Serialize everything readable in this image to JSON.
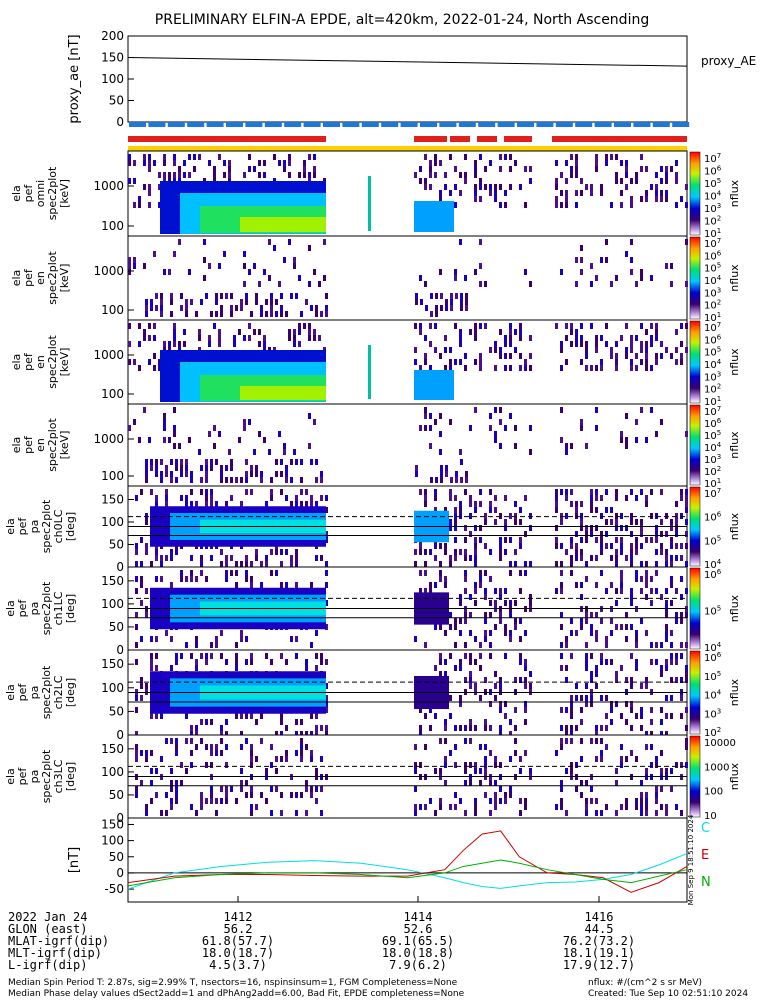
{
  "title": "PRELIMINARY ELFIN-A EPDE, alt=420km, 2022-01-24, North Ascending",
  "x_labels": [
    "1412",
    "1414",
    "1416"
  ],
  "ae_panel": {
    "ylabel": "proxy_ae [nT]",
    "ticks": [
      "200",
      "150",
      "100",
      "50",
      "0"
    ],
    "legend": "proxy_AE",
    "series": {
      "x": [
        1410.9,
        1416.9
      ],
      "y": [
        150,
        130
      ]
    }
  },
  "spectra_panels": [
    {
      "ylabel": [
        "ela",
        "pef",
        "omni",
        "spec2plot",
        "[keV]"
      ],
      "ticks": [
        "1000",
        "100"
      ],
      "cbar_ticks": [
        "10^7",
        "10^6",
        "10^5",
        "10^4",
        "10^3",
        "10^2",
        "10^1"
      ],
      "cbar_label": "nflux"
    },
    {
      "ylabel": [
        "ela",
        "pef",
        "en",
        "spec2plot",
        "[keV]"
      ],
      "ticks": [
        "1000",
        "100"
      ],
      "cbar_ticks": [
        "10^7",
        "10^6",
        "10^5",
        "10^4",
        "10^3",
        "10^2",
        "10^1"
      ],
      "cbar_label": "nflux"
    },
    {
      "ylabel": [
        "ela",
        "pef",
        "en",
        "spec2plot",
        "[keV]"
      ],
      "ticks": [
        "1000",
        "100"
      ],
      "cbar_ticks": [
        "10^7",
        "10^6",
        "10^5",
        "10^4",
        "10^3",
        "10^2",
        "10^1"
      ],
      "cbar_label": "nflux"
    },
    {
      "ylabel": [
        "ela",
        "pef",
        "en",
        "spec2plot",
        "[keV]"
      ],
      "ticks": [
        "1000",
        "100"
      ],
      "cbar_ticks": [
        "10^7",
        "10^6",
        "10^5",
        "10^4",
        "10^3",
        "10^2",
        "10^1"
      ],
      "cbar_label": "nflux"
    }
  ],
  "pa_panels": [
    {
      "ylabel": [
        "ela",
        "pef",
        "pa",
        "spec2plot",
        "ch0LC",
        "[deg]"
      ],
      "ticks": [
        "150",
        "100",
        "50",
        "0"
      ],
      "cbar_ticks": [
        "10^7",
        "10^6",
        "10^5",
        "10^4"
      ],
      "cbar_label": "nflux"
    },
    {
      "ylabel": [
        "ela",
        "pef",
        "pa",
        "spec2plot",
        "ch1LC",
        "[deg]"
      ],
      "ticks": [
        "150",
        "100",
        "50",
        "0"
      ],
      "cbar_ticks": [
        "10^6",
        "10^5",
        "10^4"
      ],
      "cbar_label": "nflux"
    },
    {
      "ylabel": [
        "ela",
        "pef",
        "pa",
        "spec2plot",
        "ch2LC",
        "[deg]"
      ],
      "ticks": [
        "150",
        "100",
        "50",
        "0"
      ],
      "cbar_ticks": [
        "10^6",
        "10^5",
        "10^4",
        "10^3",
        "10^2"
      ],
      "cbar_label": "nflux"
    },
    {
      "ylabel": [
        "ela",
        "pef",
        "pa",
        "spec2plot",
        "ch3LC",
        "[deg]"
      ],
      "ticks": [
        "150",
        "100",
        "50",
        "0"
      ],
      "cbar_ticks": [
        "10000",
        "1000",
        "100",
        "10"
      ],
      "cbar_label": "nflux"
    }
  ],
  "fgm_panel": {
    "ylabel": "[nT]",
    "ticks": [
      "150",
      "100",
      "50",
      "0",
      "-50"
    ],
    "legend": [
      {
        "name": "C",
        "color": "#00e0e0"
      },
      {
        "name": "E",
        "color": "#d00000"
      },
      {
        "name": "N",
        "color": "#00b000"
      }
    ],
    "side_text": "Mon Sep 9 18:51:10 2024"
  },
  "chart_data": [
    {
      "type": "line",
      "title": "",
      "ylabel": "proxy_ae [nT]",
      "ylim": [
        0,
        200
      ],
      "series": [
        {
          "name": "proxy_AE",
          "x": [
            1410.9,
            1416.9
          ],
          "values": [
            150,
            130
          ]
        }
      ]
    },
    {
      "type": "line",
      "ylabel": "[nT]",
      "ylim": [
        -90,
        170
      ],
      "x": [
        1410.9,
        1411.4,
        1411.9,
        1412.4,
        1412.9,
        1413.4,
        1413.9,
        1414.3,
        1414.5,
        1414.7,
        1414.9,
        1415.1,
        1415.4,
        1415.7,
        1416.0,
        1416.3,
        1416.6,
        1416.9
      ],
      "series": [
        {
          "name": "C",
          "values": [
            -50,
            0,
            20,
            33,
            38,
            30,
            10,
            -15,
            -30,
            -42,
            -48,
            -40,
            -30,
            -28,
            -20,
            -5,
            25,
            60
          ]
        },
        {
          "name": "E",
          "values": [
            -30,
            -10,
            -5,
            -5,
            -8,
            -10,
            -10,
            10,
            70,
            120,
            130,
            50,
            0,
            -5,
            -15,
            -60,
            -30,
            20
          ]
        },
        {
          "name": "N",
          "values": [
            -40,
            -15,
            -5,
            0,
            0,
            -5,
            -15,
            0,
            20,
            30,
            40,
            30,
            10,
            -5,
            -20,
            -30,
            -10,
            10
          ]
        }
      ]
    }
  ],
  "footer": {
    "date": "2022 Jan 24",
    "rows": [
      {
        "label": "GLON (east)",
        "values": [
          "56.2",
          "52.6",
          "44.5"
        ]
      },
      {
        "label": "MLAT-igrf(dip)",
        "values": [
          "61.8(57.7)",
          "69.1(65.5)",
          "76.2(73.2)"
        ]
      },
      {
        "label": "MLT-igrf(dip)",
        "values": [
          "18.0(18.7)",
          "18.0(18.8)",
          "18.1(19.1)"
        ]
      },
      {
        "label": "L-igrf(dip)",
        "values": [
          "4.5(3.7)",
          "7.9(6.2)",
          "17.9(12.7)"
        ]
      }
    ],
    "note1": "Median Spin Period T: 2.87s, sig=2.99% T, nsectors=16, nspinsinsum=1, FGM Completeness=None",
    "note2": "Median Phase delay values dSect2add=1 and dPhAng2add=6.00, Bad Fit, EPDE completeness=None",
    "units": "nflux: #/(cm^2 s sr MeV)",
    "created": "Created: Tue Sep 10 02:51:10 2024"
  }
}
